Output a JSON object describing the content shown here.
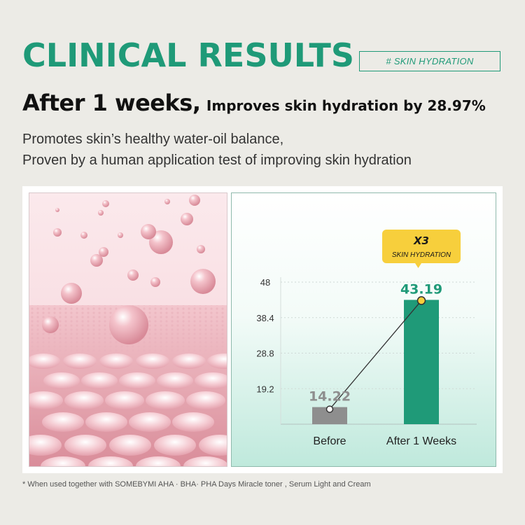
{
  "header": {
    "title": "CLINICAL RESULTS",
    "tag": "# SKIN HYDRATION",
    "headline_big": "After 1 weeks,",
    "headline_small": "Improves skin hydration by 28.97%",
    "desc_line1": "Promotes skin’s healthy water-oil balance,",
    "desc_line2": "Proven by a human application test of improving skin hydration"
  },
  "callout": {
    "multiplier": "X3",
    "label": "SKIN HYDRATION"
  },
  "footnote": "* When used together with SOMEBYMI AHA · BHA· PHA Days Miracle toner , Serum Light and Cream",
  "colors": {
    "accent": "#1f9a78",
    "before_bar": "#8e8e8e",
    "callout_bg": "#f7cf3c"
  },
  "chart_data": {
    "type": "bar",
    "categories": [
      "Before",
      "After 1 Weeks"
    ],
    "values": [
      14.22,
      43.19
    ],
    "value_labels": [
      "14.22",
      "43.19"
    ],
    "yticks": [
      19.2,
      28.8,
      38.4,
      48
    ],
    "ytick_labels": [
      "19.2",
      "28.8",
      "38.4",
      "48"
    ],
    "ylim": [
      9.6,
      48
    ],
    "title": "",
    "xlabel": "",
    "ylabel": "",
    "grid": true
  }
}
